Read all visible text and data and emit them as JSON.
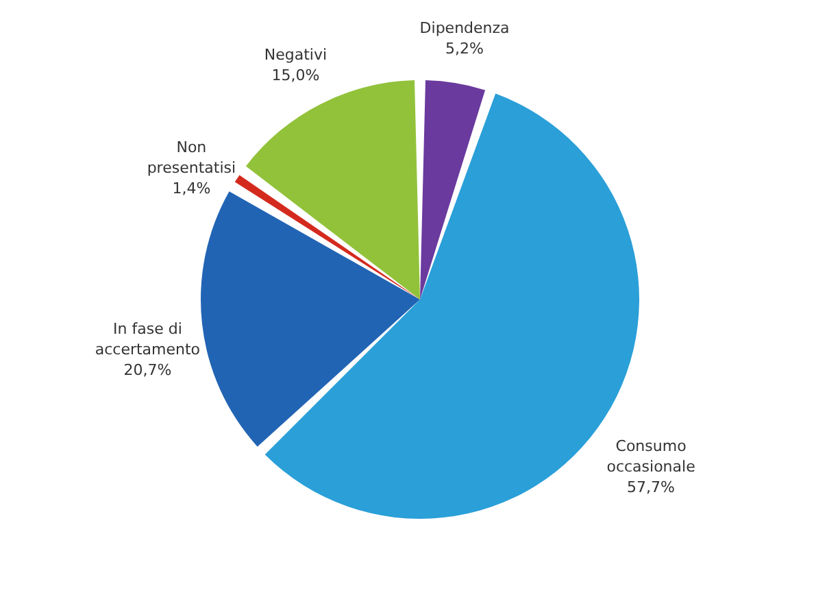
{
  "chart_data": {
    "type": "pie",
    "categories": [
      "Dipendenza",
      "Consumo occasionale",
      "In fase di accertamento",
      "Non presentatisi",
      "Negativi"
    ],
    "values": [
      5.2,
      57.7,
      20.7,
      1.4,
      15.0
    ],
    "colors": [
      "#6a3a9e",
      "#2a9fd8",
      "#2264b4",
      "#d42a1e",
      "#92c23a"
    ],
    "value_labels": [
      "5,2%",
      "57,7%",
      "20,7%",
      "1,4%",
      "15,0%"
    ]
  }
}
